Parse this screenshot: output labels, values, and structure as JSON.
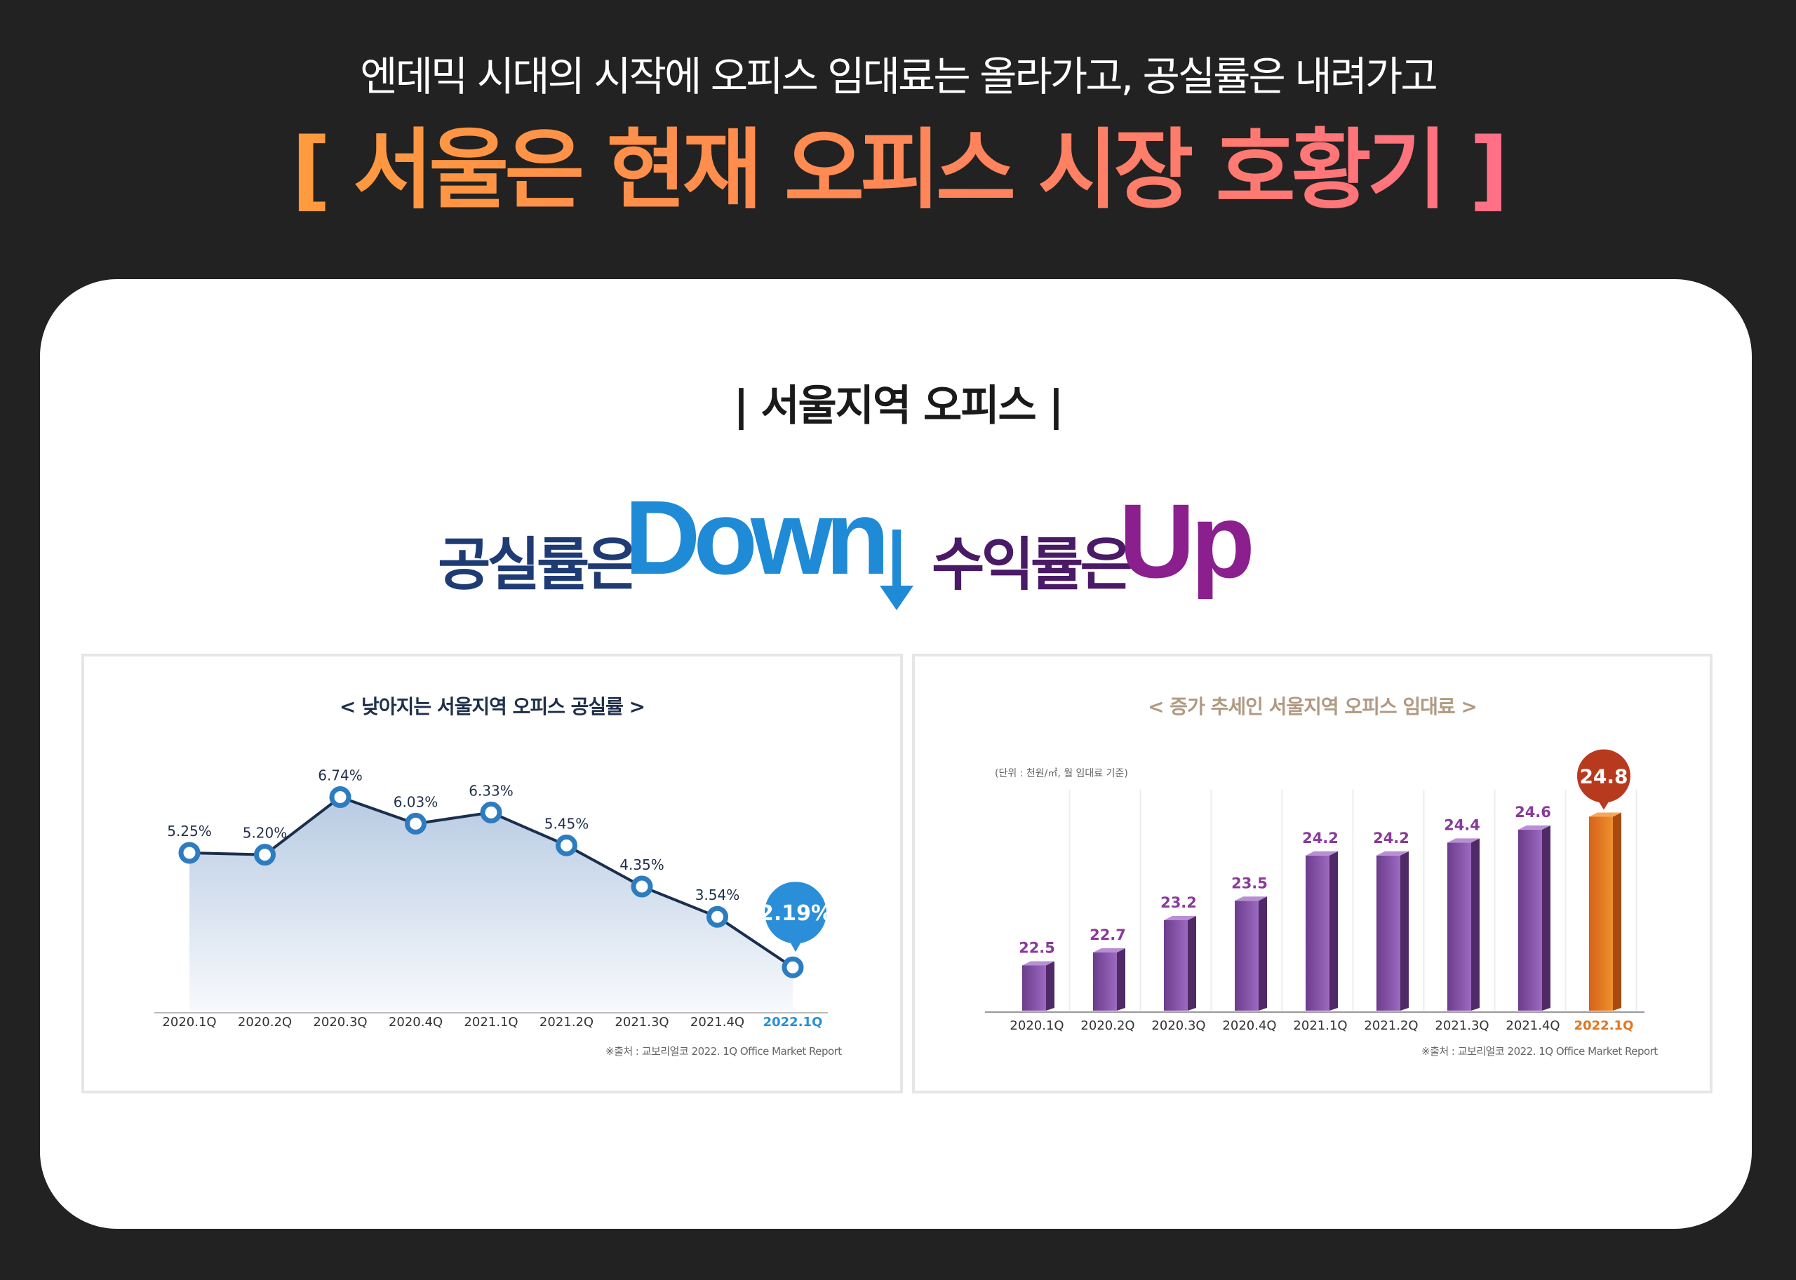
{
  "header": {
    "subtitle": "엔데믹 시대의 시작에 오피스 임대료는 올라가고, 공실률은 내려가고",
    "title": "[ 서울은 현재 오피스 시장 호황기 ]"
  },
  "section": {
    "title": "| 서울지역 오피스 |",
    "slogan_vacancy": "공실률은",
    "slogan_down": "Down",
    "slogan_return": "수익률은",
    "slogan_up": "Up"
  },
  "colors": {
    "background": "#222222",
    "title_gradient_start": "#ff9a3e",
    "title_gradient_end": "#ff6f86",
    "line_blue": "#2e7cc0",
    "bar_purple": "#7a4a9a",
    "bar_highlight": "#e0761f",
    "highlight_badge_blue": "#2a8fd8",
    "highlight_badge_red": "#b83a1e"
  },
  "chart_data": [
    {
      "type": "line",
      "title": "< 낮아지는 서울지역 오피스 공실률 >",
      "categories": [
        "2020.1Q",
        "2020.2Q",
        "2020.3Q",
        "2020.4Q",
        "2021.1Q",
        "2021.2Q",
        "2021.3Q",
        "2021.4Q",
        "2022.1Q"
      ],
      "values": [
        5.25,
        5.2,
        6.74,
        6.03,
        6.33,
        5.45,
        4.35,
        3.54,
        2.19
      ],
      "labels": [
        "5.25%",
        "5.20%",
        "6.74%",
        "6.03%",
        "6.33%",
        "5.45%",
        "4.35%",
        "3.54%",
        "2.19%"
      ],
      "highlight_index": 8,
      "ylim": [
        1.5,
        7.5
      ],
      "source": "※출처 : 교보리얼코 2022. 1Q Office Market Report"
    },
    {
      "type": "bar",
      "title": "< 증가 추세인 서울지역 오피스 임대료 >",
      "unit_note": "(단위 : 천원/㎡, 월 임대료 기준)",
      "categories": [
        "2020.1Q",
        "2020.2Q",
        "2020.3Q",
        "2020.4Q",
        "2021.1Q",
        "2021.2Q",
        "2021.3Q",
        "2021.4Q",
        "2022.1Q"
      ],
      "values": [
        22.5,
        22.7,
        23.2,
        23.5,
        24.2,
        24.2,
        24.4,
        24.6,
        24.8
      ],
      "labels": [
        "22.5",
        "22.7",
        "23.2",
        "23.5",
        "24.2",
        "24.2",
        "24.4",
        "24.6",
        "24.8"
      ],
      "highlight_index": 8,
      "ylim": [
        21.8,
        25.0
      ],
      "source": "※출처 : 교보리얼코 2022. 1Q Office Market Report"
    }
  ]
}
